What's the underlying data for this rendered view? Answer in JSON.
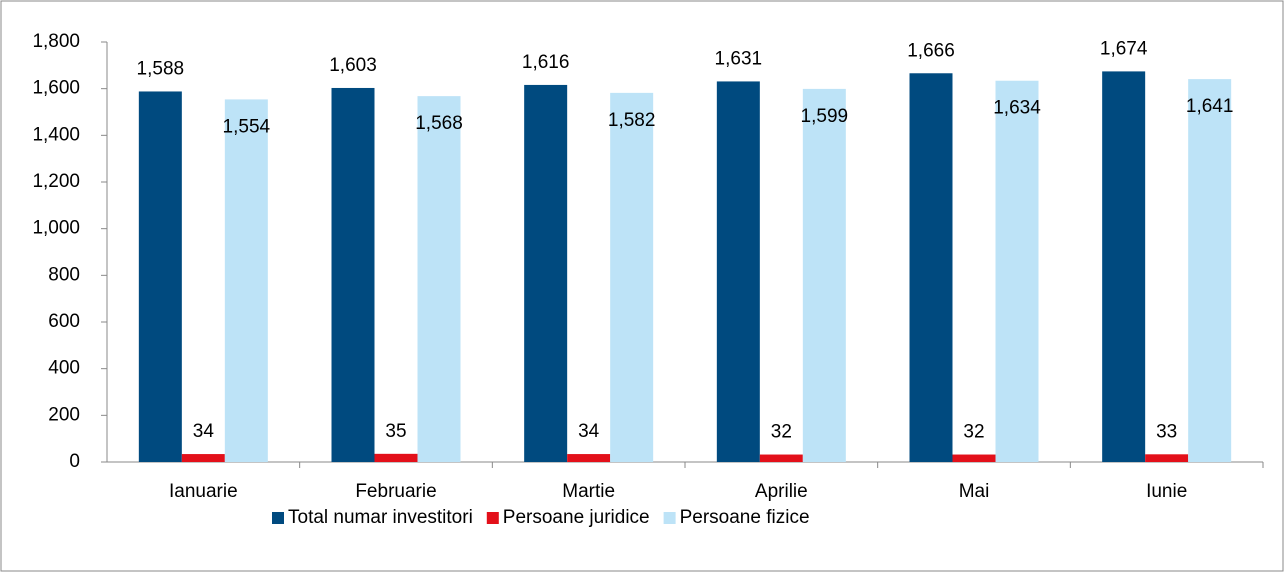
{
  "chart_data": {
    "type": "bar",
    "categories": [
      "Ianuarie",
      "Februarie",
      "Martie",
      "Aprilie",
      "Mai",
      "Iunie"
    ],
    "series": [
      {
        "name": "Total numar investitori",
        "color": "#004a7f",
        "values": [
          1588,
          1603,
          1616,
          1631,
          1666,
          1674
        ],
        "value_labels": [
          "1,588",
          "1,603",
          "1,616",
          "1,631",
          "1,666",
          "1,674"
        ]
      },
      {
        "name": "Persoane juridice",
        "color": "#e3101a",
        "values": [
          34,
          35,
          34,
          32,
          32,
          33
        ]
      },
      {
        "name": "Persoane fizice",
        "color": "#bde3f7",
        "values": [
          1554,
          1568,
          1582,
          1599,
          1634,
          1641
        ],
        "value_labels": [
          "1,554",
          "1,568",
          "1,582",
          "1,599",
          "1,634",
          "1,641"
        ]
      }
    ],
    "ylim": [
      0,
      1800
    ],
    "yticks": [
      0,
      200,
      400,
      600,
      800,
      {
        "value": 1000,
        "label": "1,000"
      },
      {
        "value": 1200,
        "label": "1,200"
      },
      {
        "value": 1400,
        "label": "1,400"
      },
      {
        "value": 1600,
        "label": "1,600"
      },
      {
        "value": 1800,
        "label": "1,800"
      }
    ],
    "grid": false,
    "legend": "bottom"
  }
}
